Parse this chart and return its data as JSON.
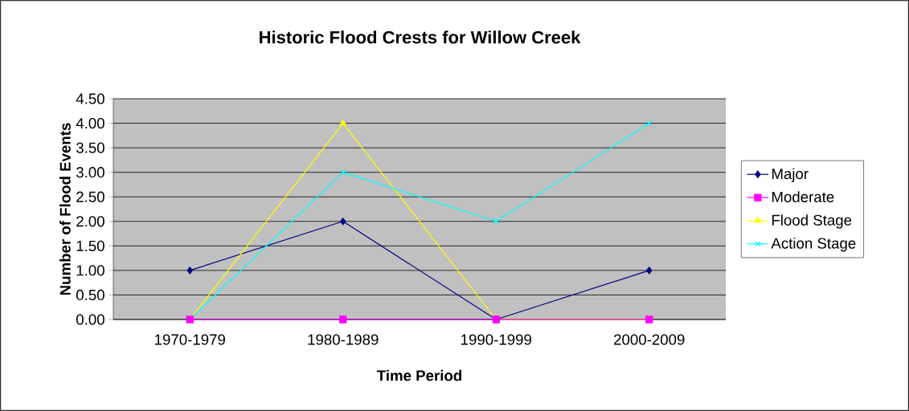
{
  "chart_data": {
    "type": "line",
    "title": "Historic Flood Crests for Willow Creek",
    "xlabel": "Time Period",
    "ylabel": "Number of Flood Events",
    "categories": [
      "1970-1979",
      "1980-1989",
      "1990-1999",
      "2000-2009"
    ],
    "series": [
      {
        "name": "Major",
        "color": "#000080",
        "marker": "diamond",
        "values": [
          1,
          2,
          0,
          1
        ]
      },
      {
        "name": "Moderate",
        "color": "#ff00ff",
        "marker": "square",
        "values": [
          0,
          0,
          0,
          0
        ]
      },
      {
        "name": "Flood Stage",
        "color": "#ffff00",
        "marker": "triangle",
        "values": [
          0,
          4,
          0,
          0
        ]
      },
      {
        "name": "Action Stage",
        "color": "#00ffff",
        "marker": "cross",
        "values": [
          0,
          3,
          2,
          4
        ]
      }
    ],
    "ylim": [
      0,
      4.5
    ],
    "yticks": [
      {
        "value": 0,
        "label": "0.00"
      },
      {
        "value": 0.5,
        "label": "0.50"
      },
      {
        "value": 1,
        "label": "1.00"
      },
      {
        "value": 1.5,
        "label": "1.50"
      },
      {
        "value": 2,
        "label": "2.00"
      },
      {
        "value": 2.5,
        "label": "2.50"
      },
      {
        "value": 3,
        "label": "3.00"
      },
      {
        "value": 3.5,
        "label": "3.50"
      },
      {
        "value": 4,
        "label": "4.00"
      },
      {
        "value": 4.5,
        "label": "4.50"
      }
    ],
    "grid": "y",
    "legend": "right"
  }
}
